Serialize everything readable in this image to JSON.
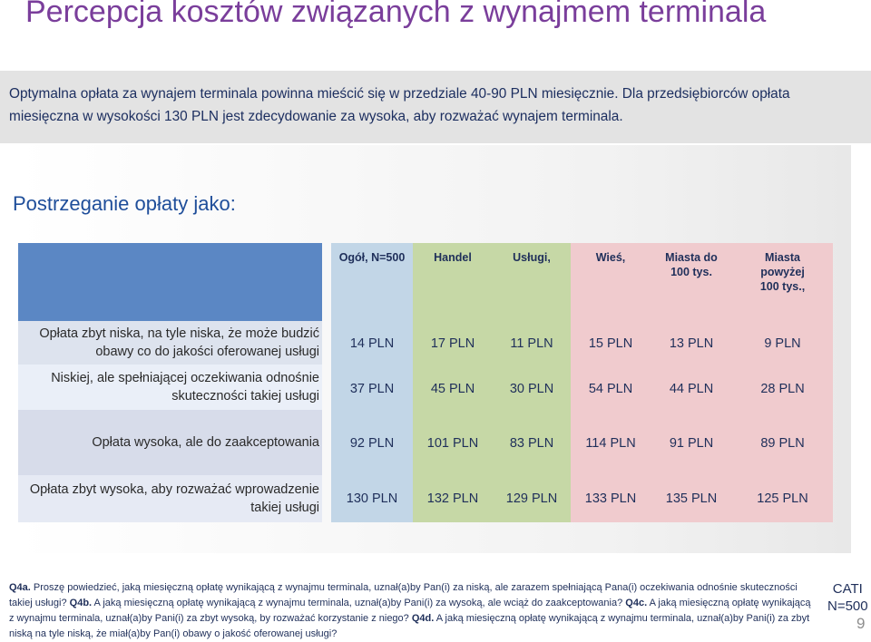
{
  "title": "Percepcja kosztów związanych z wynajmem terminala",
  "banner": "Optymalna opłata za wynajem terminala powinna mieścić się w przedziale 40-90 PLN miesięcznie. Dla przedsiębiorców opłata miesięczna w wysokości 130 PLN jest zdecydowanie za wysoka, aby rozważać wynajem terminala.",
  "subtitle": "Postrzeganie opłaty jako:",
  "table": {
    "columns": [
      "Ogół, N=500",
      "Handel",
      "Usługi,",
      "Wieś,",
      "Miasta do 100 tys.",
      "Miasta powyżej 100 tys.,"
    ],
    "rows": [
      {
        "label": "Opłata zbyt niska, na tyle niska, że może budzić obawy co do jakości oferowanej usługi",
        "values": [
          "14 PLN",
          "17 PLN",
          "11 PLN",
          "15 PLN",
          "13 PLN",
          "9 PLN"
        ]
      },
      {
        "label": "Niskiej, ale spełniającej oczekiwania odnośnie skuteczności takiej usługi",
        "values": [
          "37 PLN",
          "45 PLN",
          "30 PLN",
          "54 PLN",
          "44 PLN",
          "28 PLN"
        ]
      },
      {
        "label": "Opłata wysoka, ale do zaakceptowania",
        "values": [
          "92 PLN",
          "101 PLN",
          "83 PLN",
          "114 PLN",
          "91 PLN",
          "89 PLN"
        ]
      },
      {
        "label": "Opłata zbyt wysoka, aby rozważać wprowadzenie takiej usługi",
        "values": [
          "130 PLN",
          "132 PLN",
          "129 PLN",
          "133 PLN",
          "135 PLN",
          "125 PLN"
        ]
      }
    ]
  },
  "footer": {
    "q4a_label": "Q4a.",
    "q4a_text": " Proszę powiedzieć, jaką miesięczną opłatę wynikającą z wynajmu terminala, uznał(a)by Pan(i) za niską, ale zarazem spełniającą Pana(i) oczekiwania odnośnie skuteczności takiej usługi?",
    "q4b_label": " Q4b.",
    "q4b_text": " A jaką miesięczną opłatę wynikającą z wynajmu terminala, uznał(a)by Pani(i) za wysoką, ale wciąż do zaakceptowania?",
    "q4c_label": " Q4c.",
    "q4c_text": " A jaką miesięczną opłatę wynikającą z wynajmu terminala, uznał(a)by Pani(i) za zbyt wysoką, by rozważać korzystanie z niego?",
    "q4d_label": " Q4d.",
    "q4d_text": " A jaką miesięczną opłatę wynikającą z wynajmu terminala, uznał(a)by Pani(i) za zbyt niską na tyle niską, że miał(a)by Pan(i) obawy o jakość oferowanej usługi?"
  },
  "method": "CATI",
  "sample": "N=500",
  "page_number": "9"
}
